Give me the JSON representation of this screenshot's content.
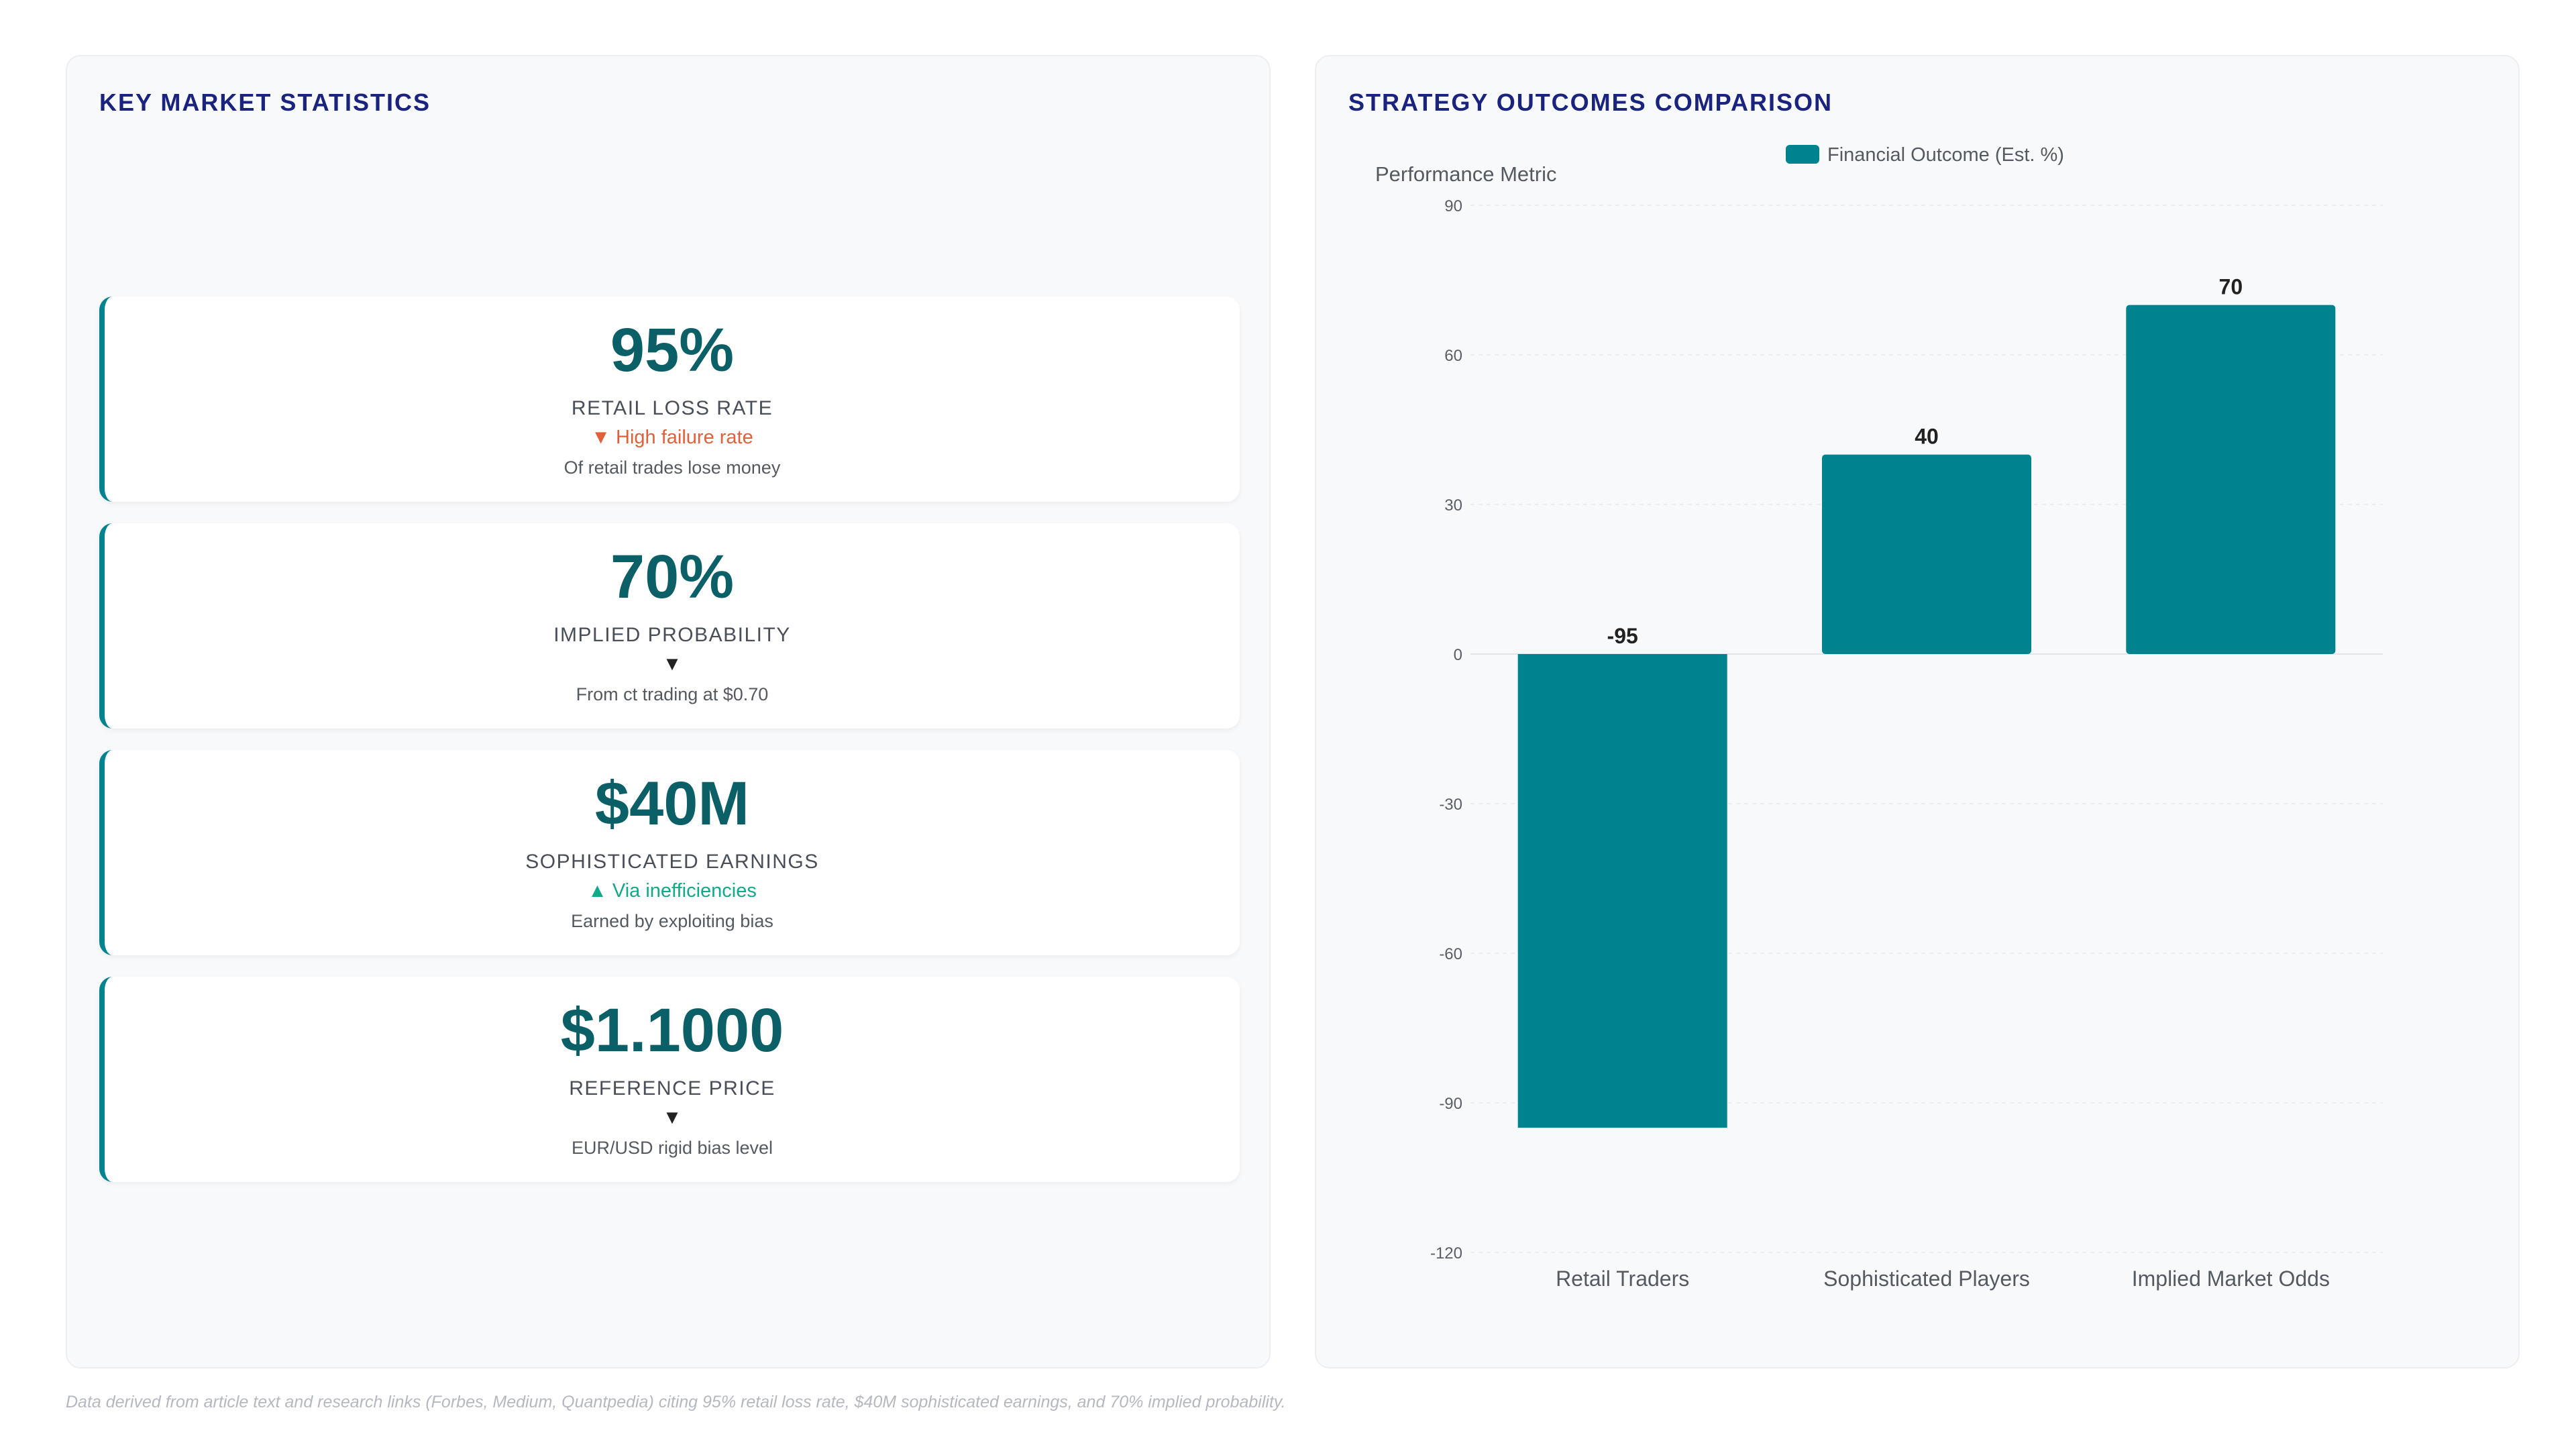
{
  "left_panel": {
    "title": "KEY MARKET STATISTICS",
    "cards": [
      {
        "value": "95%",
        "label": "RETAIL LOSS RATE",
        "trend": "▼ High failure rate",
        "trend_type": "down",
        "description": "Of retail trades lose money"
      },
      {
        "value": "70%",
        "label": "IMPLIED PROBABILITY",
        "trend": "▼",
        "trend_type": "neutral",
        "description": "From ct trading at $0.70"
      },
      {
        "value": "$40M",
        "label": "SOPHISTICATED EARNINGS",
        "trend": "▲ Via inefficiencies",
        "trend_type": "up",
        "description": "Earned by exploiting bias"
      },
      {
        "value": "$1.1000",
        "label": "REFERENCE PRICE",
        "trend": "▼",
        "trend_type": "neutral",
        "description": "EUR/USD rigid bias level"
      }
    ]
  },
  "right_panel": {
    "title": "STRATEGY OUTCOMES COMPARISON"
  },
  "chart_data": {
    "type": "bar",
    "categories": [
      "Retail Traders",
      "Sophisticated Players",
      "Implied Market Odds"
    ],
    "series": [
      {
        "name": "Financial Outcome (Est. %)",
        "values": [
          -95,
          40,
          70
        ]
      }
    ],
    "data_labels": [
      "-95",
      "40",
      "70"
    ],
    "ylabel": "Performance Metric",
    "ylim": [
      -120,
      90
    ],
    "yticks": [
      90,
      60,
      30,
      0,
      -30,
      -60,
      -90,
      -120
    ],
    "grid": true,
    "legend_position": "top-center",
    "bar_color": "#00838f"
  },
  "footnote": "Data derived from article text and research links (Forbes, Medium, Quantpedia) citing 95% retail loss rate, $40M sophisticated earnings, and 70% implied probability."
}
